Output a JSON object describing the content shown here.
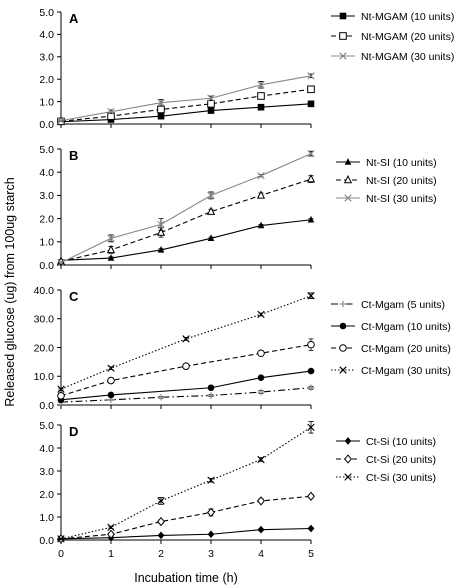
{
  "y_axis_label": "Released glucose (ug) from 100ug starch",
  "x_axis_label": "Incubation time (h)",
  "chart_data": [
    {
      "type": "line",
      "panel": "A",
      "x": [
        0,
        1,
        2,
        3,
        4,
        5
      ],
      "xlabel": "Incubation time (h)",
      "ylabel": "Released glucose (ug) from 100ug starch",
      "ylim": [
        0,
        5
      ],
      "yticks": [
        0,
        1,
        2,
        3,
        4,
        5
      ],
      "ytick_labels": [
        "0.0",
        "1.0",
        "2.0",
        "3.0",
        "4.0",
        "5.0"
      ],
      "xticks": [
        0,
        1,
        2,
        3,
        4,
        5
      ],
      "show_xtick_labels": false,
      "grid": false,
      "legend_position": "right",
      "series": [
        {
          "name": "Nt-MGAM (10 units)",
          "values": [
            0.1,
            0.2,
            0.35,
            0.6,
            0.75,
            0.9
          ],
          "errors": [
            0.03,
            0.03,
            0.05,
            0.05,
            0.05,
            0.05
          ],
          "style": "solid",
          "color": "#000000",
          "marker": "square-filled"
        },
        {
          "name": "Nt-MGAM (20 units)",
          "values": [
            0.12,
            0.35,
            0.65,
            0.9,
            1.25,
            1.55
          ],
          "errors": [
            0.03,
            0.05,
            0.1,
            0.08,
            0.08,
            0.08
          ],
          "style": "dashed",
          "color": "#000000",
          "marker": "square-open"
        },
        {
          "name": "Nt-MGAM (30 units)",
          "values": [
            0.15,
            0.55,
            0.95,
            1.15,
            1.75,
            2.15
          ],
          "errors": [
            0.03,
            0.08,
            0.15,
            0.1,
            0.15,
            0.08
          ],
          "style": "solid",
          "color": "#888888",
          "marker": "x"
        }
      ]
    },
    {
      "type": "line",
      "panel": "B",
      "x": [
        0,
        1,
        2,
        3,
        4,
        5
      ],
      "xlabel": "Incubation time (h)",
      "ylabel": "Released glucose (ug) from 100ug starch",
      "ylim": [
        0,
        5
      ],
      "yticks": [
        0,
        1,
        2,
        3,
        4,
        5
      ],
      "ytick_labels": [
        "0.0",
        "1.0",
        "2.0",
        "3.0",
        "4.0",
        "5.0"
      ],
      "xticks": [
        0,
        1,
        2,
        3,
        4,
        5
      ],
      "show_xtick_labels": false,
      "grid": false,
      "legend_position": "right",
      "series": [
        {
          "name": "Nt-SI (10 units)",
          "values": [
            0.2,
            0.3,
            0.65,
            1.15,
            1.7,
            1.95
          ],
          "errors": [
            0.03,
            0.05,
            0.05,
            0.05,
            0.05,
            0.05
          ],
          "style": "solid",
          "color": "#000000",
          "marker": "triangle-filled"
        },
        {
          "name": "Nt-SI (20 units)",
          "values": [
            0.15,
            0.65,
            1.4,
            2.3,
            3.0,
            3.7
          ],
          "errors": [
            0.03,
            0.15,
            0.2,
            0.1,
            0.1,
            0.15
          ],
          "style": "dashed",
          "color": "#000000",
          "marker": "triangle-open"
        },
        {
          "name": "Nt-SI (30 units)",
          "values": [
            0.1,
            1.15,
            1.75,
            3.0,
            3.85,
            4.8
          ],
          "errors": [
            0.03,
            0.15,
            0.25,
            0.15,
            0.05,
            0.1
          ],
          "style": "solid",
          "color": "#888888",
          "marker": "x"
        }
      ]
    },
    {
      "type": "line",
      "panel": "C",
      "x": [
        0,
        1,
        2,
        3,
        4,
        5
      ],
      "xlabel": "Incubation time (h)",
      "ylabel": "Released glucose (ug) from 100ug starch",
      "ylim": [
        0,
        40
      ],
      "yticks": [
        0,
        10,
        20,
        30,
        40
      ],
      "ytick_labels": [
        "0.0",
        "10.0",
        "20.0",
        "30.0",
        "40.0"
      ],
      "xticks": [
        0,
        1,
        2,
        3,
        4,
        5
      ],
      "show_xtick_labels": false,
      "grid": false,
      "legend_position": "right",
      "series": [
        {
          "name": "Ct-Mgam (5 units)",
          "values": [
            1.0,
            1.8,
            2.7,
            3.3,
            4.5,
            6.0
          ],
          "errors": [
            0.2,
            0.2,
            0.3,
            0.3,
            0.5,
            0.5
          ],
          "style": "dashdot",
          "color": "#000000",
          "marker": "plus-gray"
        },
        {
          "name": "Ct-Mgam (10 units)",
          "values": [
            1.8,
            3.5,
            6.0,
            9.5,
            11.8
          ],
          "x": [
            0,
            1,
            3,
            4,
            5
          ],
          "errors": [
            0.2,
            0.3,
            0.3,
            0.4,
            0.4
          ],
          "style": "solid",
          "color": "#000000",
          "marker": "circle-filled"
        },
        {
          "name": "Ct-Mgam (20 units)",
          "values": [
            3.2,
            8.5,
            13.5,
            18.0,
            21.0
          ],
          "x": [
            0,
            1,
            2.5,
            4,
            5
          ],
          "errors": [
            0.3,
            0.5,
            0.5,
            0.8,
            2.0
          ],
          "style": "dashed",
          "color": "#000000",
          "marker": "circle-open"
        },
        {
          "name": "Ct-Mgam (30 units)",
          "values": [
            5.5,
            12.8,
            23.0,
            31.5,
            38.0
          ],
          "x": [
            0,
            1,
            2.5,
            4,
            5
          ],
          "errors": [
            0.3,
            0.5,
            0.5,
            0.5,
            1.0
          ],
          "style": "dotted",
          "color": "#000000",
          "marker": "x"
        }
      ]
    },
    {
      "type": "line",
      "panel": "D",
      "x": [
        0,
        1,
        2,
        3,
        4,
        5
      ],
      "xlabel": "Incubation time (h)",
      "ylabel": "Released glucose (ug) from 100ug starch",
      "ylim": [
        0,
        5
      ],
      "yticks": [
        0,
        1,
        2,
        3,
        4,
        5
      ],
      "ytick_labels": [
        "0.0",
        "1.0",
        "2.0",
        "3.0",
        "4.0",
        "5.0"
      ],
      "xticks": [
        0,
        1,
        2,
        3,
        4,
        5
      ],
      "xtick_labels": [
        "0",
        "1",
        "2",
        "3",
        "4",
        "5"
      ],
      "show_xtick_labels": true,
      "grid": false,
      "legend_position": "right",
      "series": [
        {
          "name": "Ct-Si (10 units)",
          "values": [
            0.05,
            0.1,
            0.2,
            0.25,
            0.45,
            0.5
          ],
          "errors": [
            0.02,
            0.03,
            0.03,
            0.03,
            0.05,
            0.05
          ],
          "style": "solid",
          "color": "#000000",
          "marker": "diamond-filled"
        },
        {
          "name": "Ct-Si (20 units)",
          "values": [
            0.05,
            0.25,
            0.8,
            1.2,
            1.7,
            1.9
          ],
          "errors": [
            0.02,
            0.05,
            0.08,
            0.15,
            0.08,
            0.08
          ],
          "style": "dashed",
          "color": "#000000",
          "marker": "diamond-open"
        },
        {
          "name": "Ct-Si (30 units)",
          "values": [
            0.05,
            0.55,
            1.7,
            2.6,
            3.5,
            4.9
          ],
          "errors": [
            0.02,
            0.05,
            0.15,
            0.08,
            0.08,
            0.25
          ],
          "style": "dotted",
          "color": "#000000",
          "marker": "x"
        }
      ]
    }
  ]
}
